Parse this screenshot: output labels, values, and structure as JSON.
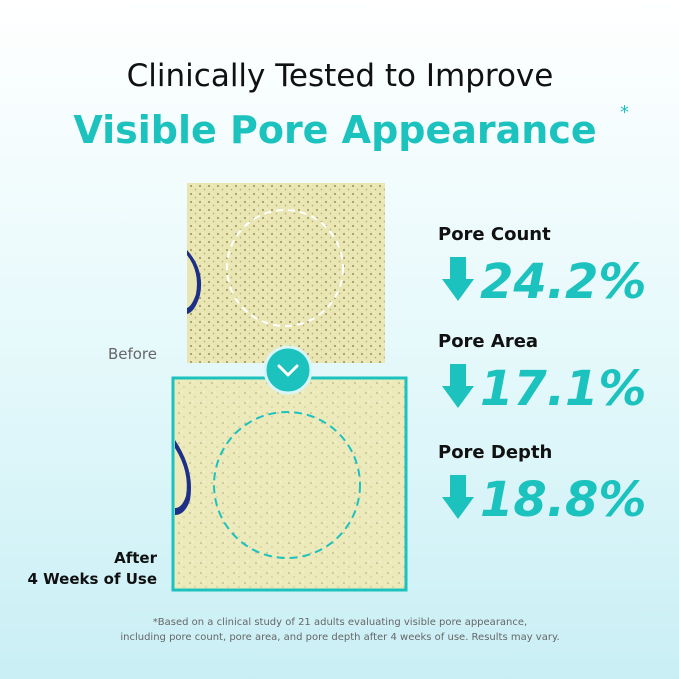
{
  "headline": {
    "line1": "Clinically Tested to Improve",
    "line2": "Visible Pore Appearance",
    "mark": "*"
  },
  "images": {
    "before_label": "Before",
    "after_label": [
      "After",
      "4 Weeks of Use"
    ]
  },
  "results": [
    {
      "label": "Pore Count",
      "value": "24.2%"
    },
    {
      "label": "Pore Area",
      "value": "17.1%"
    },
    {
      "label": "Pore Depth",
      "value": "18.8%"
    }
  ],
  "footnote": [
    "*Based on a clinical study of 21 adults evaluating visible pore appearance,",
    "including pore count, pore area, and pore depth after 4 weeks of use. Results may vary."
  ]
}
